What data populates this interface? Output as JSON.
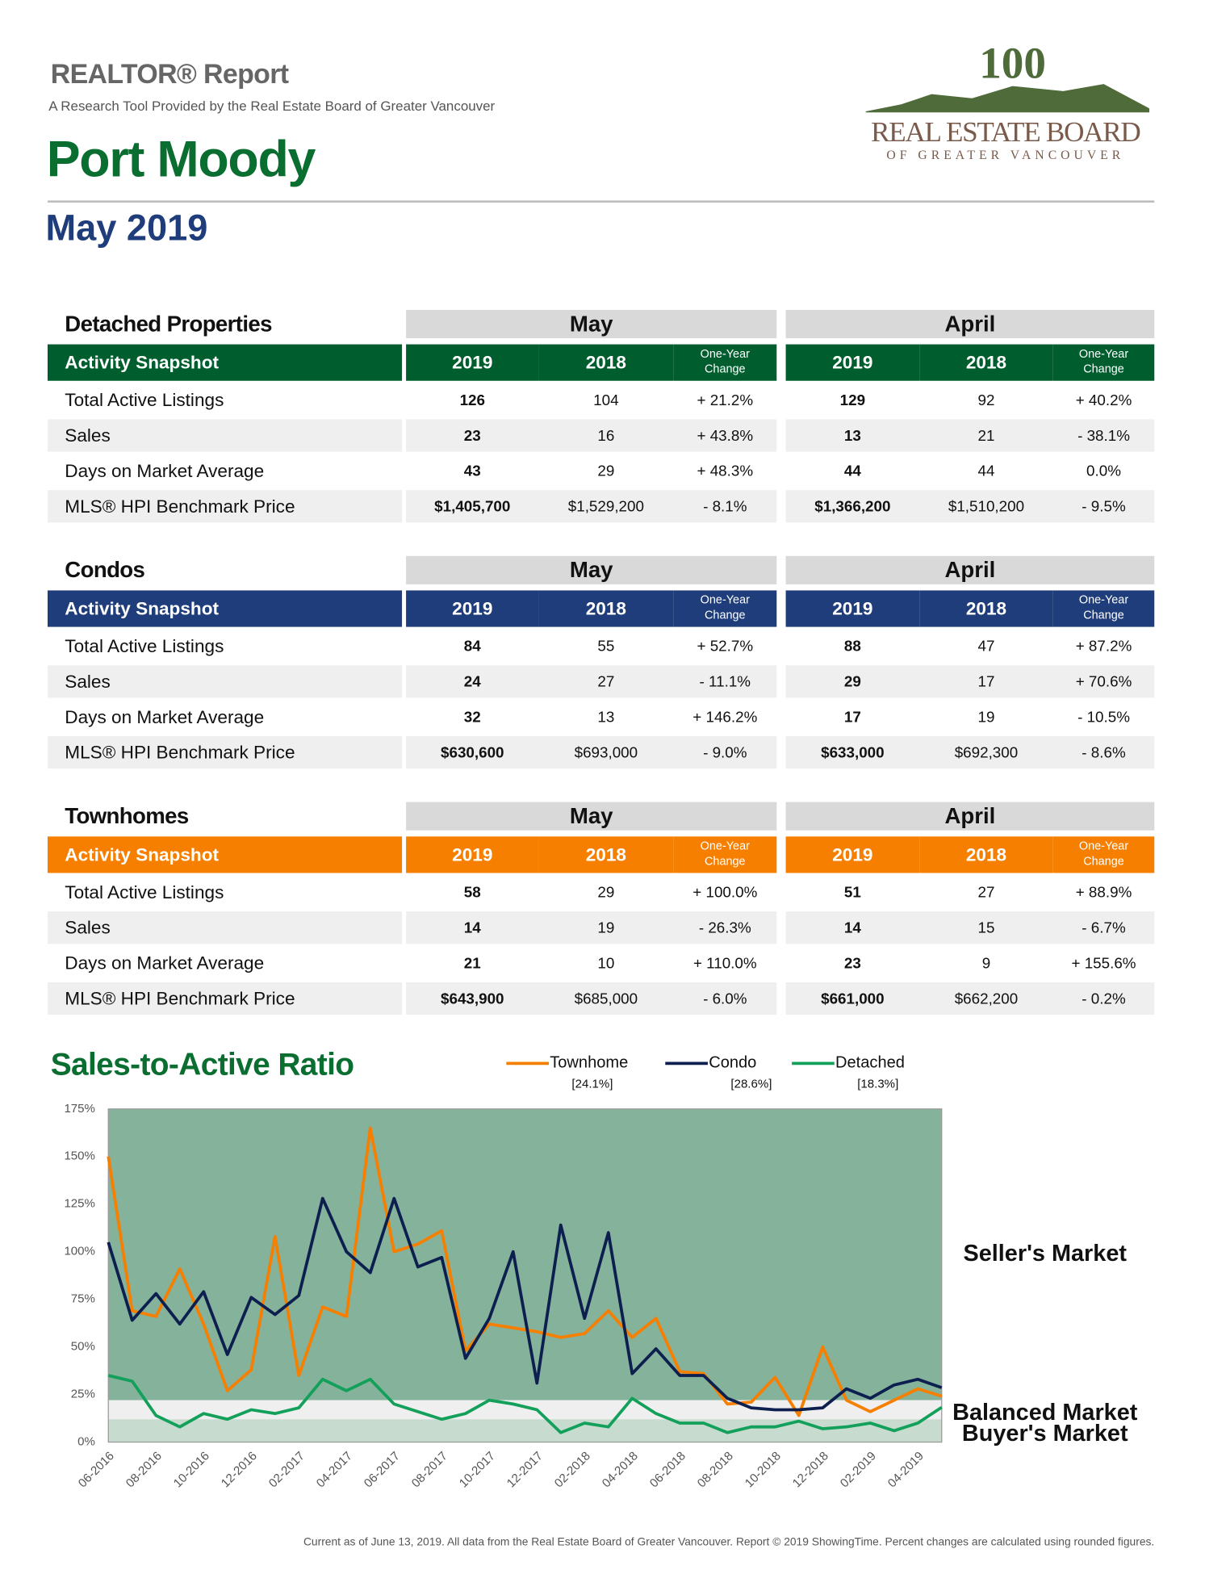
{
  "header": {
    "report": "REALTOR® Report",
    "tagline": "A Research Tool Provided by the Real Estate Board of Greater Vancouver",
    "area": "Port Moody",
    "period": "May 2019"
  },
  "logo": {
    "number": "100",
    "name": "REAL ESTATE BOARD",
    "sub": "OF GREATER VANCOUVER"
  },
  "tables": [
    {
      "title": "Detached Properties",
      "color": "#005e2e",
      "periods": [
        "May",
        "April"
      ],
      "snapshot": "Activity Snapshot",
      "columns": [
        "2019",
        "2018",
        "One-Year Change",
        "2019",
        "2018",
        "One-Year Change"
      ],
      "rows": [
        [
          "Total Active Listings",
          "126",
          "104",
          "+ 21.2%",
          "129",
          "92",
          "+ 40.2%"
        ],
        [
          "Sales",
          "23",
          "16",
          "+ 43.8%",
          "13",
          "21",
          "- 38.1%"
        ],
        [
          "Days on Market Average",
          "43",
          "29",
          "+ 48.3%",
          "44",
          "44",
          "0.0%"
        ],
        [
          "MLS® HPI Benchmark Price",
          "$1,405,700",
          "$1,529,200",
          "- 8.1%",
          "$1,366,200",
          "$1,510,200",
          "- 9.5%"
        ]
      ]
    },
    {
      "title": "Condos",
      "color": "#1f3d7a",
      "periods": [
        "May",
        "April"
      ],
      "snapshot": "Activity Snapshot",
      "columns": [
        "2019",
        "2018",
        "One-Year Change",
        "2019",
        "2018",
        "One-Year Change"
      ],
      "rows": [
        [
          "Total Active Listings",
          "84",
          "55",
          "+ 52.7%",
          "88",
          "47",
          "+ 87.2%"
        ],
        [
          "Sales",
          "24",
          "27",
          "- 11.1%",
          "29",
          "17",
          "+ 70.6%"
        ],
        [
          "Days on Market Average",
          "32",
          "13",
          "+ 146.2%",
          "17",
          "19",
          "- 10.5%"
        ],
        [
          "MLS® HPI Benchmark Price",
          "$630,600",
          "$693,000",
          "- 9.0%",
          "$633,000",
          "$692,300",
          "- 8.6%"
        ]
      ]
    },
    {
      "title": "Townhomes",
      "color": "#f77f00",
      "periods": [
        "May",
        "April"
      ],
      "snapshot": "Activity Snapshot",
      "columns": [
        "2019",
        "2018",
        "One-Year Change",
        "2019",
        "2018",
        "One-Year Change"
      ],
      "rows": [
        [
          "Total Active Listings",
          "58",
          "29",
          "+ 100.0%",
          "51",
          "27",
          "+ 88.9%"
        ],
        [
          "Sales",
          "14",
          "19",
          "- 26.3%",
          "14",
          "15",
          "- 6.7%"
        ],
        [
          "Days on Market Average",
          "21",
          "10",
          "+ 110.0%",
          "23",
          "9",
          "+ 155.6%"
        ],
        [
          "MLS® HPI Benchmark Price",
          "$643,900",
          "$685,000",
          "- 6.0%",
          "$661,000",
          "$662,200",
          "- 0.2%"
        ]
      ]
    }
  ],
  "chart": {
    "type": "line",
    "title": "Sales-to-Active Ratio",
    "categories": [
      "06-2016",
      null,
      "08-2016",
      null,
      "10-2016",
      null,
      "12-2016",
      null,
      "02-2017",
      null,
      "04-2017",
      null,
      "06-2017",
      null,
      "08-2017",
      null,
      "10-2017",
      null,
      "12-2017",
      null,
      "02-2018",
      null,
      "04-2018",
      null,
      "06-2018",
      null,
      "08-2018",
      null,
      "10-2018",
      null,
      "12-2018",
      null,
      "02-2019",
      null,
      "04-2019",
      null
    ],
    "series": [
      {
        "name": "Townhome",
        "current": "[24.1%]",
        "color": "#f77f00",
        "values": [
          150,
          69,
          66,
          91,
          62,
          27,
          38,
          108,
          35,
          71,
          66,
          165,
          100,
          104,
          111,
          48,
          62,
          60,
          58,
          55,
          57,
          69,
          55,
          65,
          37,
          36,
          20,
          21,
          34,
          14,
          50,
          22,
          16,
          22,
          28,
          24.1
        ]
      },
      {
        "name": "Condo",
        "current": "[28.6%]",
        "color": "#0d1f4f",
        "values": [
          105,
          64,
          78,
          62,
          79,
          46,
          76,
          67,
          77,
          128,
          100,
          89,
          128,
          92,
          97,
          44,
          65,
          100,
          31,
          114,
          65,
          110,
          36,
          49,
          35,
          35,
          23,
          18,
          17,
          17,
          18,
          28,
          23,
          30,
          33,
          28.6
        ]
      },
      {
        "name": "Detached",
        "current": "[18.3%]",
        "color": "#13a05a",
        "values": [
          35,
          32,
          14,
          8,
          15,
          12,
          17,
          15,
          18,
          33,
          27,
          33,
          20,
          16,
          12,
          15,
          22,
          20,
          17,
          5,
          10,
          8,
          23,
          15,
          10,
          10,
          5,
          8,
          8,
          11,
          7,
          8,
          10,
          6,
          10,
          18.3
        ]
      }
    ],
    "bands": [
      {
        "label": "Seller's Market",
        "from": 22,
        "to": 175,
        "color": "#84b29a"
      },
      {
        "label": "Balanced Market",
        "from": 12,
        "to": 22,
        "color": "#efefef"
      },
      {
        "label": "Buyer's Market",
        "from": 0,
        "to": 12,
        "color": "#c7dccf"
      }
    ],
    "ylim": [
      0,
      175
    ],
    "yticks": [
      {
        "value": 0,
        "label": "0%"
      },
      {
        "value": 25,
        "label": "25%"
      },
      {
        "value": 50,
        "label": "50%"
      },
      {
        "value": 75,
        "label": "75%"
      },
      {
        "value": 100,
        "label": "100%"
      },
      {
        "value": 125,
        "label": "125%"
      },
      {
        "value": 150,
        "label": "150%"
      },
      {
        "value": 175,
        "label": "175%"
      }
    ]
  },
  "footer": "Current as of June 13, 2019. All data from the Real Estate Board of Greater Vancouver. Report © 2019 ShowingTime. Percent changes are calculated using rounded figures."
}
